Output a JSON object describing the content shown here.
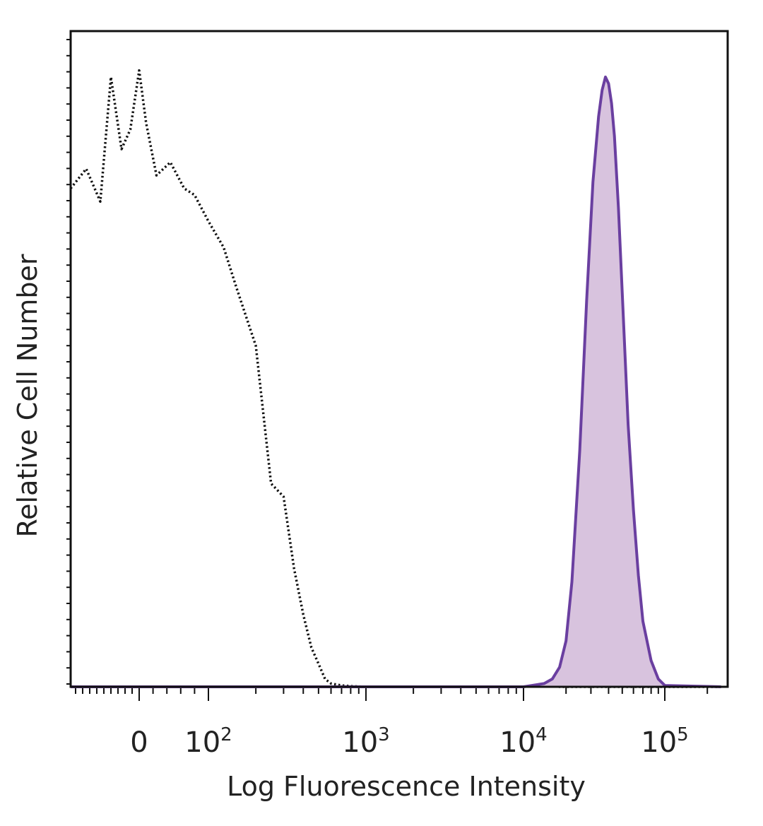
{
  "chart_data": {
    "type": "area",
    "title": "",
    "xlabel": "Log Fluorescence Intensity",
    "ylabel": "Relative Cell Number",
    "x_scale": "biexponential",
    "xlim": [
      -200,
      250000
    ],
    "ylim": [
      0,
      1.0
    ],
    "grid": false,
    "legend": "none",
    "x_tick_labels": [
      {
        "value": 0,
        "base": "0",
        "exp": ""
      },
      {
        "value": 100,
        "base": "10",
        "exp": "2"
      },
      {
        "value": 1000,
        "base": "10",
        "exp": "3"
      },
      {
        "value": 10000,
        "base": "10",
        "exp": "4"
      },
      {
        "value": 100000,
        "base": "10",
        "exp": "5"
      }
    ],
    "series": [
      {
        "style": "dotted-outline",
        "color": "#111111",
        "x": [
          -200,
          -150,
          -110,
          -80,
          -50,
          -25,
          0,
          10,
          25,
          45,
          65,
          80,
          100,
          125,
          150,
          200,
          250,
          300,
          350,
          400,
          450,
          500,
          550,
          600,
          700,
          800,
          1000,
          2000,
          5000,
          10000,
          14000,
          18000,
          250000
        ],
        "y": [
          0.76,
          0.79,
          0.74,
          0.93,
          0.82,
          0.85,
          0.94,
          0.86,
          0.78,
          0.8,
          0.76,
          0.75,
          0.71,
          0.67,
          0.61,
          0.52,
          0.31,
          0.29,
          0.18,
          0.11,
          0.06,
          0.035,
          0.012,
          0.005,
          0.002,
          0.001,
          0.0,
          0.0,
          0.0,
          0.0,
          0.003,
          0.0,
          0.0
        ]
      },
      {
        "style": "filled",
        "color": "#6a3fa0",
        "fill": "#d8c3de",
        "x": [
          -200,
          1000,
          10000,
          14000,
          16000,
          18000,
          20000,
          22000,
          25000,
          28000,
          31000,
          34000,
          36000,
          38000,
          40000,
          42000,
          44000,
          47000,
          50000,
          55000,
          60000,
          65000,
          70000,
          80000,
          90000,
          100000,
          250000
        ],
        "y": [
          0.0,
          0.0,
          0.0,
          0.005,
          0.012,
          0.03,
          0.07,
          0.16,
          0.36,
          0.59,
          0.77,
          0.87,
          0.91,
          0.93,
          0.92,
          0.89,
          0.84,
          0.73,
          0.6,
          0.4,
          0.27,
          0.17,
          0.1,
          0.04,
          0.012,
          0.002,
          0.0
        ]
      }
    ]
  }
}
